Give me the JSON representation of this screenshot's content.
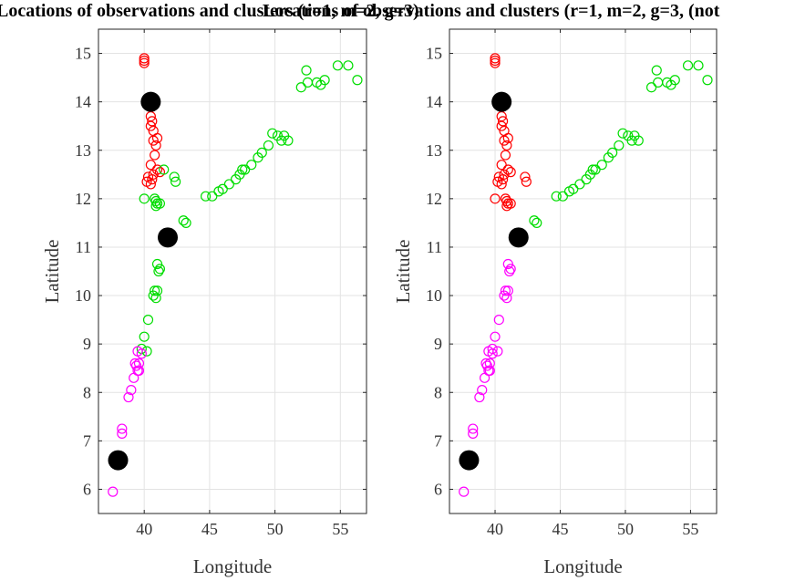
{
  "figure": {
    "title_left": "Locations of observations and clusters (r=1, m=2, g=3)",
    "title_right": "Locations of observations and clusters (r=1, m=2, g=3, (not"
  },
  "chart_data": [
    {
      "type": "scatter",
      "title": "Locations of observations and clusters (r=1, m=2, g=3)",
      "xlabel": "Longitude",
      "ylabel": "Latitude",
      "xlim": [
        36.5,
        57
      ],
      "ylim": [
        5.5,
        15.5
      ],
      "xticks": [
        40,
        45,
        50,
        55
      ],
      "yticks": [
        6,
        7,
        8,
        9,
        10,
        11,
        12,
        13,
        14,
        15
      ],
      "grid": true,
      "series": [
        {
          "color": "#ff0000",
          "marker": "open-circle",
          "points": [
            [
              40,
              14.9
            ],
            [
              40,
              14.85
            ],
            [
              40,
              14.8
            ],
            [
              40.5,
              13.7
            ],
            [
              40.6,
              13.6
            ],
            [
              40.5,
              13.5
            ],
            [
              40.7,
              13.4
            ],
            [
              40.7,
              13.2
            ],
            [
              41,
              13.25
            ],
            [
              40.9,
              13.1
            ],
            [
              40.8,
              12.9
            ],
            [
              41,
              12.6
            ],
            [
              40.5,
              12.7
            ],
            [
              40.7,
              12.5
            ],
            [
              41.2,
              12.55
            ],
            [
              40.3,
              12.45
            ],
            [
              40.6,
              12.4
            ],
            [
              40.2,
              12.35
            ],
            [
              40.5,
              12.3
            ]
          ]
        },
        {
          "color": "#00dd00",
          "marker": "open-circle",
          "points": [
            [
              52,
              14.3
            ],
            [
              52.4,
              14.65
            ],
            [
              52.5,
              14.4
            ],
            [
              53.2,
              14.4
            ],
            [
              53.5,
              14.35
            ],
            [
              53.8,
              14.45
            ],
            [
              54.8,
              14.75
            ],
            [
              55.6,
              14.75
            ],
            [
              56.3,
              14.45
            ],
            [
              49.8,
              13.35
            ],
            [
              50.2,
              13.3
            ],
            [
              50.5,
              13.2
            ],
            [
              50.7,
              13.3
            ],
            [
              51,
              13.2
            ],
            [
              49.5,
              13.1
            ],
            [
              49,
              12.95
            ],
            [
              48.7,
              12.85
            ],
            [
              48.2,
              12.7
            ],
            [
              47.7,
              12.6
            ],
            [
              47.3,
              12.5
            ],
            [
              47.5,
              12.6
            ],
            [
              47,
              12.4
            ],
            [
              46.5,
              12.3
            ],
            [
              46,
              12.2
            ],
            [
              45.7,
              12.15
            ],
            [
              45.2,
              12.05
            ],
            [
              44.7,
              12.05
            ],
            [
              41.5,
              12.6
            ],
            [
              42.3,
              12.45
            ],
            [
              42.4,
              12.35
            ],
            [
              40,
              12
            ],
            [
              40.8,
              12
            ],
            [
              41,
              11.9
            ],
            [
              40.9,
              11.85
            ],
            [
              41.2,
              11.9
            ],
            [
              40.9,
              11.95
            ],
            [
              43,
              11.55
            ],
            [
              43.2,
              11.5
            ],
            [
              41,
              10.65
            ],
            [
              41.2,
              10.55
            ],
            [
              41.1,
              10.5
            ],
            [
              40.8,
              10.1
            ],
            [
              40.7,
              10
            ],
            [
              40.9,
              9.95
            ],
            [
              41,
              10.1
            ],
            [
              40.3,
              9.5
            ],
            [
              40,
              9.15
            ],
            [
              39.8,
              8.9
            ],
            [
              40.2,
              8.85
            ]
          ]
        },
        {
          "color": "#ff00ff",
          "marker": "open-circle",
          "points": [
            [
              39.8,
              8.8
            ],
            [
              39.5,
              8.85
            ],
            [
              39.6,
              8.6
            ],
            [
              39.4,
              8.55
            ],
            [
              39.3,
              8.6
            ],
            [
              39.5,
              8.45
            ],
            [
              39.2,
              8.3
            ],
            [
              39.6,
              8.45
            ],
            [
              38.8,
              7.9
            ],
            [
              39,
              8.05
            ],
            [
              38.3,
              7.25
            ],
            [
              38.3,
              7.15
            ],
            [
              37.6,
              5.95
            ]
          ]
        },
        {
          "color": "#000000",
          "marker": "filled-circle-large",
          "name": "",
          "points": [
            [
              40.5,
              14
            ],
            [
              41.8,
              11.2
            ],
            [
              38,
              6.6
            ]
          ]
        }
      ]
    },
    {
      "type": "scatter",
      "title": "Locations of observations and clusters (r=1, m=2, g=3, (not",
      "xlabel": "Longitude",
      "ylabel": "Latitude",
      "xlim": [
        36.5,
        57
      ],
      "ylim": [
        5.5,
        15.5
      ],
      "xticks": [
        40,
        45,
        50,
        55
      ],
      "yticks": [
        6,
        7,
        8,
        9,
        10,
        11,
        12,
        13,
        14,
        15
      ],
      "grid": true,
      "series": [
        {
          "color": "#ff0000",
          "marker": "open-circle",
          "points": [
            [
              40,
              14.9
            ],
            [
              40,
              14.85
            ],
            [
              40,
              14.8
            ],
            [
              40.5,
              13.7
            ],
            [
              40.6,
              13.6
            ],
            [
              40.5,
              13.5
            ],
            [
              40.7,
              13.4
            ],
            [
              40.7,
              13.2
            ],
            [
              41,
              13.25
            ],
            [
              40.9,
              13.1
            ],
            [
              40.8,
              12.9
            ],
            [
              41,
              12.6
            ],
            [
              40.5,
              12.7
            ],
            [
              40.7,
              12.5
            ],
            [
              41.2,
              12.55
            ],
            [
              40.3,
              12.45
            ],
            [
              40.6,
              12.4
            ],
            [
              40.2,
              12.35
            ],
            [
              40.5,
              12.3
            ],
            [
              42.3,
              12.45
            ],
            [
              42.4,
              12.35
            ],
            [
              40,
              12
            ],
            [
              40.8,
              12
            ],
            [
              41,
              11.9
            ],
            [
              40.9,
              11.85
            ],
            [
              41.2,
              11.9
            ],
            [
              40.9,
              11.95
            ],
            [
              41.6,
              11.25
            ]
          ]
        },
        {
          "color": "#00dd00",
          "marker": "open-circle",
          "points": [
            [
              52,
              14.3
            ],
            [
              52.4,
              14.65
            ],
            [
              52.5,
              14.4
            ],
            [
              53.2,
              14.4
            ],
            [
              53.5,
              14.35
            ],
            [
              53.8,
              14.45
            ],
            [
              54.8,
              14.75
            ],
            [
              55.6,
              14.75
            ],
            [
              56.3,
              14.45
            ],
            [
              49.8,
              13.35
            ],
            [
              50.2,
              13.3
            ],
            [
              50.5,
              13.2
            ],
            [
              50.7,
              13.3
            ],
            [
              51,
              13.2
            ],
            [
              49.5,
              13.1
            ],
            [
              49,
              12.95
            ],
            [
              48.7,
              12.85
            ],
            [
              48.2,
              12.7
            ],
            [
              47.7,
              12.6
            ],
            [
              47.3,
              12.5
            ],
            [
              47.5,
              12.6
            ],
            [
              47,
              12.4
            ],
            [
              46.5,
              12.3
            ],
            [
              46,
              12.2
            ],
            [
              45.7,
              12.15
            ],
            [
              45.2,
              12.05
            ],
            [
              44.7,
              12.05
            ],
            [
              43,
              11.55
            ],
            [
              43.2,
              11.5
            ]
          ]
        },
        {
          "color": "#ff00ff",
          "marker": "open-circle",
          "points": [
            [
              41,
              10.65
            ],
            [
              41.2,
              10.55
            ],
            [
              41.1,
              10.5
            ],
            [
              40.8,
              10.1
            ],
            [
              40.7,
              10
            ],
            [
              40.9,
              9.95
            ],
            [
              41,
              10.1
            ],
            [
              40.3,
              9.5
            ],
            [
              40,
              9.15
            ],
            [
              39.8,
              8.9
            ],
            [
              40.2,
              8.85
            ],
            [
              39.8,
              8.8
            ],
            [
              39.5,
              8.85
            ],
            [
              39.6,
              8.6
            ],
            [
              39.4,
              8.55
            ],
            [
              39.3,
              8.6
            ],
            [
              39.5,
              8.45
            ],
            [
              39.2,
              8.3
            ],
            [
              39.6,
              8.45
            ],
            [
              38.8,
              7.9
            ],
            [
              39,
              8.05
            ],
            [
              38.3,
              7.25
            ],
            [
              38.3,
              7.15
            ],
            [
              37.6,
              5.95
            ]
          ]
        },
        {
          "color": "#000000",
          "marker": "filled-circle-large",
          "name": "",
          "points": [
            [
              40.5,
              14
            ],
            [
              41.8,
              11.2
            ],
            [
              38,
              6.6
            ]
          ]
        }
      ]
    }
  ]
}
